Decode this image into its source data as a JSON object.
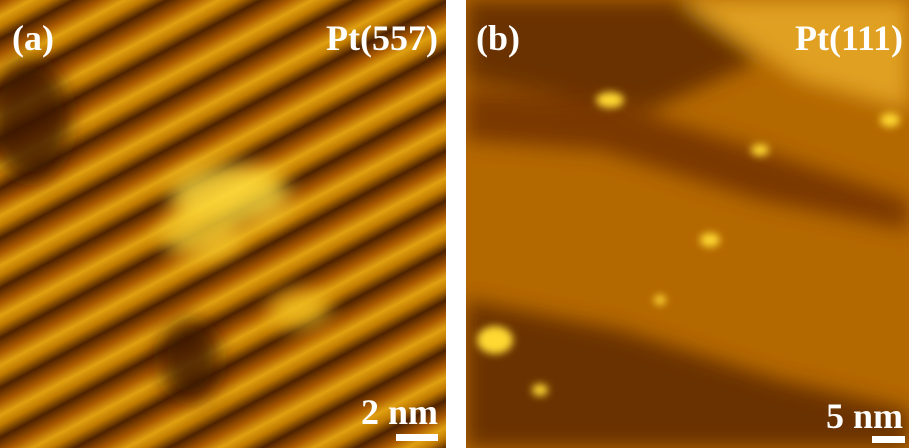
{
  "panels": [
    {
      "label": "(a)",
      "surface": "Pt(557)",
      "scale": "2 nm"
    },
    {
      "label": "(b)",
      "surface": "Pt(111)",
      "scale": "5 nm"
    }
  ]
}
